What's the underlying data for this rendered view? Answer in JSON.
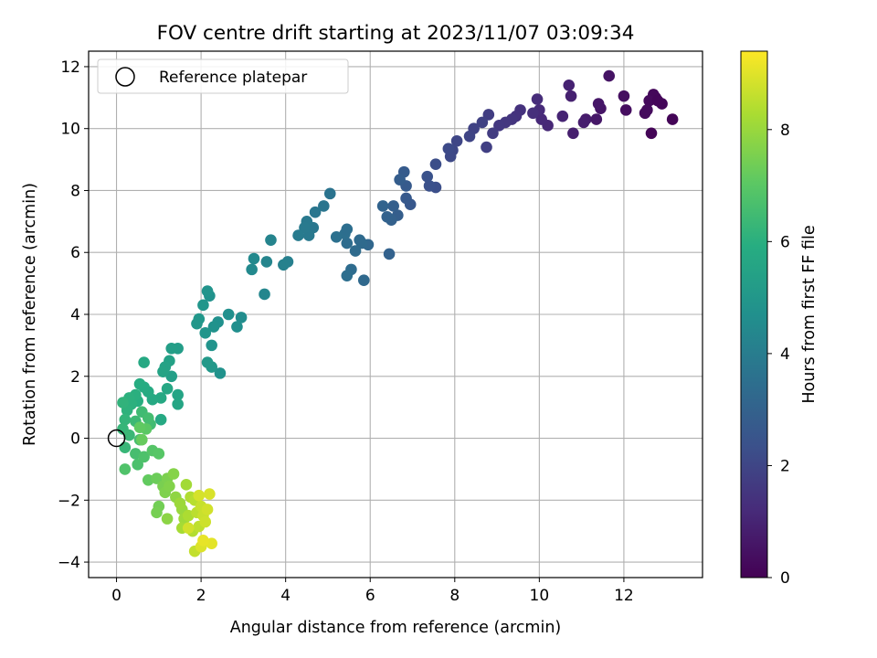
{
  "chart_data": {
    "type": "scatter",
    "title": "FOV centre drift starting at 2023/11/07 03:09:34",
    "xlabel": "Angular distance from reference (arcmin)",
    "ylabel": "Rotation from reference (arcmin)",
    "xlim": [
      -0.66,
      13.86
    ],
    "ylim": [
      -4.5,
      12.5
    ],
    "xticks": [
      0,
      2,
      4,
      6,
      8,
      10,
      12
    ],
    "yticks": [
      -4,
      -2,
      0,
      2,
      4,
      6,
      8,
      10,
      12
    ],
    "grid": true,
    "legend": {
      "placement": "top-left",
      "entries": [
        "Reference platepar"
      ]
    },
    "reference": {
      "x": 0,
      "y": 0
    },
    "colorbar": {
      "label": "Hours from first FF file",
      "range": [
        0,
        9.4
      ],
      "ticks": [
        0,
        2,
        4,
        6,
        8
      ],
      "colormap": "viridis"
    },
    "points": [
      [
        13.15,
        10.3,
        0.1
      ],
      [
        12.9,
        10.8,
        0.15
      ],
      [
        12.75,
        11.0,
        0.2
      ],
      [
        12.7,
        11.1,
        0.2
      ],
      [
        12.6,
        10.9,
        0.25
      ],
      [
        12.5,
        10.5,
        0.3
      ],
      [
        12.65,
        9.85,
        0.1
      ],
      [
        12.55,
        10.6,
        0.3
      ],
      [
        12.8,
        10.9,
        0.15
      ],
      [
        12.05,
        10.6,
        0.35
      ],
      [
        12.0,
        11.05,
        0.4
      ],
      [
        11.65,
        11.7,
        0.5
      ],
      [
        11.45,
        10.65,
        0.55
      ],
      [
        11.4,
        10.8,
        0.6
      ],
      [
        11.35,
        10.3,
        0.65
      ],
      [
        11.1,
        10.3,
        0.75
      ],
      [
        11.05,
        10.2,
        0.8
      ],
      [
        10.8,
        9.85,
        0.85
      ],
      [
        10.75,
        11.05,
        0.9
      ],
      [
        10.7,
        11.4,
        0.95
      ],
      [
        10.55,
        10.4,
        1.0
      ],
      [
        10.2,
        10.1,
        1.1
      ],
      [
        10.05,
        10.3,
        1.15
      ],
      [
        10.0,
        10.6,
        1.2
      ],
      [
        9.95,
        10.95,
        1.25
      ],
      [
        9.85,
        10.5,
        1.3
      ],
      [
        9.55,
        10.6,
        1.4
      ],
      [
        9.45,
        10.4,
        1.45
      ],
      [
        9.35,
        10.3,
        1.5
      ],
      [
        9.2,
        10.2,
        1.55
      ],
      [
        9.05,
        10.1,
        1.6
      ],
      [
        8.9,
        9.85,
        1.7
      ],
      [
        8.8,
        10.45,
        1.75
      ],
      [
        8.75,
        9.4,
        1.8
      ],
      [
        8.65,
        10.2,
        1.85
      ],
      [
        8.45,
        10.0,
        1.9
      ],
      [
        8.35,
        9.75,
        1.95
      ],
      [
        8.05,
        9.6,
        2.0
      ],
      [
        7.95,
        9.3,
        2.05
      ],
      [
        7.9,
        9.1,
        2.1
      ],
      [
        7.85,
        9.35,
        2.15
      ],
      [
        7.55,
        8.85,
        2.25
      ],
      [
        7.55,
        8.1,
        2.3
      ],
      [
        7.4,
        8.15,
        2.35
      ],
      [
        7.35,
        8.45,
        2.4
      ],
      [
        6.95,
        7.55,
        2.6
      ],
      [
        6.85,
        7.75,
        2.65
      ],
      [
        6.85,
        8.15,
        2.7
      ],
      [
        6.8,
        8.6,
        2.75
      ],
      [
        6.7,
        8.35,
        2.8
      ],
      [
        6.65,
        7.2,
        2.85
      ],
      [
        6.55,
        7.5,
        2.9
      ],
      [
        6.5,
        7.05,
        2.95
      ],
      [
        6.45,
        5.95,
        3.0
      ],
      [
        6.4,
        7.15,
        3.0
      ],
      [
        6.3,
        7.5,
        3.05
      ],
      [
        5.95,
        6.25,
        3.2
      ],
      [
        5.85,
        5.1,
        3.25
      ],
      [
        5.8,
        6.3,
        3.3
      ],
      [
        5.75,
        6.4,
        3.3
      ],
      [
        5.65,
        6.05,
        3.35
      ],
      [
        5.55,
        5.45,
        3.4
      ],
      [
        5.45,
        5.25,
        3.45
      ],
      [
        5.45,
        6.3,
        3.4
      ],
      [
        5.4,
        6.6,
        3.5
      ],
      [
        5.45,
        6.75,
        3.45
      ],
      [
        5.2,
        6.5,
        3.55
      ],
      [
        5.05,
        7.9,
        3.65
      ],
      [
        4.9,
        7.5,
        3.7
      ],
      [
        4.7,
        7.3,
        3.75
      ],
      [
        4.65,
        6.8,
        3.8
      ],
      [
        4.55,
        6.55,
        3.85
      ],
      [
        4.5,
        7.0,
        3.85
      ],
      [
        4.45,
        6.8,
        3.9
      ],
      [
        4.3,
        6.55,
        3.95
      ],
      [
        4.05,
        5.7,
        4.1
      ],
      [
        3.95,
        5.6,
        4.15
      ],
      [
        3.65,
        6.4,
        4.25
      ],
      [
        3.55,
        5.7,
        4.3
      ],
      [
        3.5,
        4.65,
        4.35
      ],
      [
        3.2,
        5.45,
        4.45
      ],
      [
        3.25,
        5.8,
        4.45
      ],
      [
        2.95,
        3.9,
        4.6
      ],
      [
        2.85,
        3.6,
        4.65
      ],
      [
        2.65,
        4.0,
        4.7
      ],
      [
        2.45,
        2.1,
        4.8
      ],
      [
        2.4,
        3.75,
        4.75
      ],
      [
        2.3,
        3.6,
        4.8
      ],
      [
        2.25,
        3.0,
        4.85
      ],
      [
        2.2,
        4.6,
        4.8
      ],
      [
        2.15,
        4.75,
        4.85
      ],
      [
        2.1,
        3.4,
        4.9
      ],
      [
        2.05,
        4.3,
        4.95
      ],
      [
        1.95,
        3.85,
        5.0
      ],
      [
        1.9,
        3.7,
        5.0
      ],
      [
        2.25,
        2.3,
        5.05
      ],
      [
        2.15,
        2.45,
        5.1
      ],
      [
        1.45,
        2.9,
        5.25
      ],
      [
        1.3,
        2.9,
        5.3
      ],
      [
        1.3,
        2.0,
        5.35
      ],
      [
        1.25,
        2.5,
        5.4
      ],
      [
        1.15,
        2.3,
        5.45
      ],
      [
        1.1,
        2.15,
        5.5
      ],
      [
        1.45,
        1.4,
        5.55
      ],
      [
        1.45,
        1.1,
        5.6
      ],
      [
        1.2,
        1.6,
        5.65
      ],
      [
        1.05,
        1.3,
        5.7
      ],
      [
        1.05,
        0.6,
        5.75
      ],
      [
        0.85,
        1.25,
        5.75
      ],
      [
        0.75,
        1.5,
        5.8
      ],
      [
        0.65,
        2.45,
        5.7
      ],
      [
        0.65,
        1.65,
        5.85
      ],
      [
        0.55,
        1.75,
        5.9
      ],
      [
        0.5,
        1.2,
        5.95
      ],
      [
        0.45,
        1.4,
        6.0
      ],
      [
        0.35,
        1.1,
        6.05
      ],
      [
        0.3,
        1.3,
        6.05
      ],
      [
        0.25,
        0.9,
        6.1
      ],
      [
        0.15,
        1.15,
        6.15
      ],
      [
        0.2,
        0.6,
        6.2
      ],
      [
        0.15,
        0.3,
        6.25
      ],
      [
        0.2,
        -0.3,
        6.3
      ],
      [
        0.3,
        0.1,
        6.35
      ],
      [
        0.45,
        0.55,
        6.4
      ],
      [
        0.6,
        0.85,
        6.45
      ],
      [
        0.8,
        0.45,
        6.5
      ],
      [
        0.75,
        0.65,
        6.55
      ],
      [
        0.55,
        -0.05,
        6.6
      ],
      [
        0.45,
        -0.5,
        6.6
      ],
      [
        0.5,
        -0.85,
        6.7
      ],
      [
        0.65,
        -0.6,
        6.75
      ],
      [
        0.2,
        -1.0,
        6.8
      ],
      [
        0.85,
        -0.4,
        6.9
      ],
      [
        1.0,
        -0.5,
        6.95
      ],
      [
        0.7,
        0.3,
        7.0
      ],
      [
        0.75,
        -1.35,
        7.15
      ],
      [
        0.6,
        -0.05,
        7.2
      ],
      [
        0.55,
        0.35,
        7.1
      ],
      [
        0.95,
        -1.3,
        7.3
      ],
      [
        1.0,
        -2.2,
        7.4
      ],
      [
        0.95,
        -2.4,
        7.45
      ],
      [
        1.1,
        -1.55,
        7.5
      ],
      [
        1.2,
        -1.3,
        7.55
      ],
      [
        1.15,
        -1.75,
        7.6
      ],
      [
        1.25,
        -1.55,
        7.65
      ],
      [
        1.35,
        -1.15,
        7.7
      ],
      [
        1.2,
        -2.6,
        7.8
      ],
      [
        1.4,
        -1.9,
        7.85
      ],
      [
        1.55,
        -2.3,
        8.0
      ],
      [
        1.5,
        -2.1,
        8.05
      ],
      [
        1.6,
        -2.6,
        8.1
      ],
      [
        1.65,
        -1.5,
        8.15
      ],
      [
        1.55,
        -2.9,
        8.2
      ],
      [
        1.7,
        -2.5,
        8.3
      ],
      [
        1.75,
        -1.9,
        8.35
      ],
      [
        1.8,
        -3.0,
        8.4
      ],
      [
        1.85,
        -2.0,
        8.45
      ],
      [
        1.9,
        -2.4,
        8.5
      ],
      [
        1.95,
        -2.85,
        8.55
      ],
      [
        1.85,
        -3.65,
        8.6
      ],
      [
        2.0,
        -2.2,
        8.65
      ],
      [
        2.05,
        -2.5,
        8.7
      ],
      [
        2.1,
        -2.7,
        8.75
      ],
      [
        2.15,
        -2.3,
        8.8
      ],
      [
        1.95,
        -1.85,
        8.85
      ],
      [
        2.2,
        -1.8,
        8.9
      ],
      [
        2.0,
        -3.5,
        8.95
      ],
      [
        2.25,
        -3.4,
        9.05
      ],
      [
        2.05,
        -3.3,
        9.1
      ],
      [
        1.7,
        -2.9,
        8.8
      ]
    ]
  }
}
